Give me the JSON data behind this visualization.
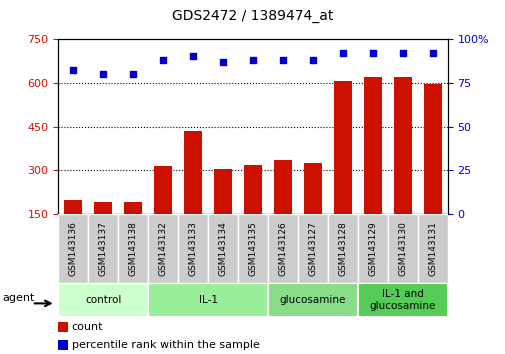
{
  "title": "GDS2472 / 1389474_at",
  "samples": [
    "GSM143136",
    "GSM143137",
    "GSM143138",
    "GSM143132",
    "GSM143133",
    "GSM143134",
    "GSM143135",
    "GSM143126",
    "GSM143127",
    "GSM143128",
    "GSM143129",
    "GSM143130",
    "GSM143131"
  ],
  "counts": [
    200,
    193,
    190,
    315,
    435,
    305,
    320,
    335,
    325,
    605,
    620,
    620,
    595
  ],
  "percentile": [
    82,
    80,
    80,
    88,
    90,
    87,
    88,
    88,
    88,
    92,
    92,
    92,
    92
  ],
  "bar_color": "#cc1100",
  "dot_color": "#0000cc",
  "ylim_left": [
    150,
    750
  ],
  "ylim_right": [
    0,
    100
  ],
  "yticks_left": [
    150,
    300,
    450,
    600,
    750
  ],
  "yticks_right": [
    0,
    25,
    50,
    75,
    100
  ],
  "groups": [
    {
      "label": "control",
      "start": 0,
      "end": 3,
      "color": "#ccffcc"
    },
    {
      "label": "IL-1",
      "start": 3,
      "end": 7,
      "color": "#99ee99"
    },
    {
      "label": "glucosamine",
      "start": 7,
      "end": 10,
      "color": "#88dd88"
    },
    {
      "label": "IL-1 and\nglucosamine",
      "start": 10,
      "end": 13,
      "color": "#55cc55"
    }
  ],
  "agent_label": "agent",
  "legend_count_label": "count",
  "legend_pct_label": "percentile rank within the sample",
  "background_color": "#ffffff",
  "tick_label_color_left": "#cc1100",
  "tick_label_color_right": "#0000cc",
  "sample_box_color": "#cccccc"
}
